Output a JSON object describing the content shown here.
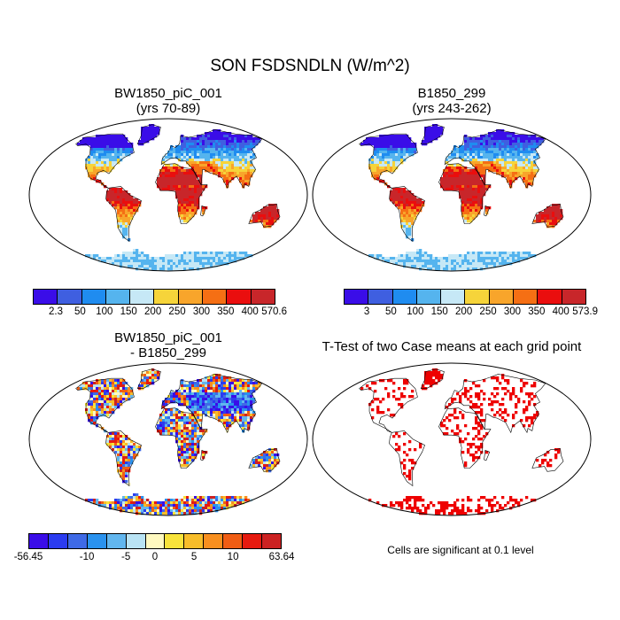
{
  "title": "SON FSDSNDLN (W/m^2)",
  "panels": {
    "p1": {
      "title_line1": "BW1850_piC_001",
      "title_line2": "(yrs 70-89)"
    },
    "p2": {
      "title_line1": "B1850_299",
      "title_line2": "(yrs 243-262)"
    },
    "p3": {
      "title_line1": "BW1850_piC_001",
      "title_line2": "- B1850_299"
    },
    "p4": {
      "title_line1": "T-Test of two Case means at each grid point"
    }
  },
  "colorbars": {
    "cb1": {
      "colors": [
        "#3a0de8",
        "#3f5fe0",
        "#1f8cf0",
        "#55b4ee",
        "#c6e8f6",
        "#f6d43a",
        "#f8a52b",
        "#f56f14",
        "#ea0e0e",
        "#c8262a"
      ],
      "labels": [
        "2.3",
        "50",
        "100",
        "150",
        "200",
        "250",
        "300",
        "350",
        "400",
        "570.6"
      ]
    },
    "cb2": {
      "colors": [
        "#3a0de8",
        "#3f5fe0",
        "#1f8cf0",
        "#55b4ee",
        "#c6e8f6",
        "#f6d43a",
        "#f8a52b",
        "#f56f14",
        "#ea0e0e",
        "#c8262a"
      ],
      "labels": [
        "3",
        "50",
        "100",
        "150",
        "200",
        "250",
        "300",
        "350",
        "400",
        "573.9"
      ]
    },
    "cb3": {
      "colors": [
        "#3a0de8",
        "#2b3cf0",
        "#3f6ae6",
        "#2a92ee",
        "#62b6ee",
        "#b9e3f4",
        "#fff9c0",
        "#f8e33b",
        "#f7bd2a",
        "#f88f1f",
        "#f05d14",
        "#e61a0f",
        "#cc2222"
      ],
      "labels": [
        "-56.45",
        "-10",
        "-5",
        "0",
        "5",
        "10",
        "63.64"
      ]
    }
  },
  "significance_note": "Cells are significant at 0.1 level",
  "legend_colors": {
    "significant": "#ee0000",
    "coast": "#000000"
  }
}
